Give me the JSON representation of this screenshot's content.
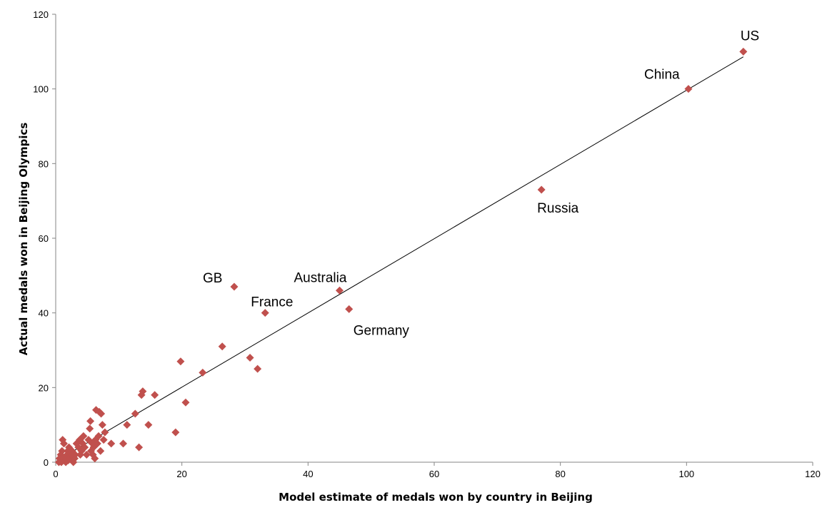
{
  "chart_data": {
    "type": "scatter",
    "title": "",
    "xlabel": "Model estimate of medals won by country in Beijing",
    "ylabel": "Actual medals won in Beijing Olympics",
    "xlim": [
      0,
      120
    ],
    "ylim": [
      0,
      120
    ],
    "xticks": [
      "0",
      "20",
      "40",
      "60",
      "80",
      "100",
      "120"
    ],
    "yticks": [
      "0",
      "20",
      "40",
      "60",
      "80",
      "100",
      "120"
    ],
    "grid": false,
    "legend": "none",
    "marker_color": "#c0504d",
    "line_color": "#000000",
    "trendline": {
      "x": [
        1,
        109
      ],
      "y": [
        1.2,
        108.6
      ]
    },
    "points": [
      {
        "x": 109,
        "y": 110,
        "label": "US"
      },
      {
        "x": 100.3,
        "y": 100,
        "label": "China"
      },
      {
        "x": 77,
        "y": 73,
        "label": "Russia"
      },
      {
        "x": 45,
        "y": 46,
        "label": "Australia"
      },
      {
        "x": 46.5,
        "y": 41,
        "label": "Germany"
      },
      {
        "x": 28.3,
        "y": 47,
        "label": "GB"
      },
      {
        "x": 33.2,
        "y": 40,
        "label": "France"
      },
      {
        "x": 26.4,
        "y": 31
      },
      {
        "x": 30.8,
        "y": 28
      },
      {
        "x": 32,
        "y": 25
      },
      {
        "x": 19.8,
        "y": 27
      },
      {
        "x": 23.3,
        "y": 24
      },
      {
        "x": 20.6,
        "y": 16
      },
      {
        "x": 15.7,
        "y": 18
      },
      {
        "x": 13.8,
        "y": 19
      },
      {
        "x": 13.6,
        "y": 18
      },
      {
        "x": 12.6,
        "y": 13
      },
      {
        "x": 11.3,
        "y": 10
      },
      {
        "x": 14.7,
        "y": 10
      },
      {
        "x": 19,
        "y": 8
      },
      {
        "x": 10.7,
        "y": 5
      },
      {
        "x": 13.2,
        "y": 4
      },
      {
        "x": 8.8,
        "y": 5
      },
      {
        "x": 6.4,
        "y": 14
      },
      {
        "x": 6.9,
        "y": 13.5
      },
      {
        "x": 7.2,
        "y": 13
      },
      {
        "x": 5.5,
        "y": 11
      },
      {
        "x": 5.4,
        "y": 9
      },
      {
        "x": 7.4,
        "y": 10
      },
      {
        "x": 7.8,
        "y": 8
      },
      {
        "x": 7.6,
        "y": 6
      },
      {
        "x": 7.1,
        "y": 3
      },
      {
        "x": 6.2,
        "y": 1
      },
      {
        "x": 5.9,
        "y": 2
      },
      {
        "x": 6.6,
        "y": 5
      },
      {
        "x": 5.2,
        "y": 6
      },
      {
        "x": 4.4,
        "y": 7
      },
      {
        "x": 4.1,
        "y": 3
      },
      {
        "x": 3.6,
        "y": 4
      },
      {
        "x": 3.3,
        "y": 5
      },
      {
        "x": 3.1,
        "y": 2
      },
      {
        "x": 2.6,
        "y": 3
      },
      {
        "x": 2.3,
        "y": 1
      },
      {
        "x": 2.1,
        "y": 4
      },
      {
        "x": 1.8,
        "y": 2
      },
      {
        "x": 1.6,
        "y": 0
      },
      {
        "x": 1.3,
        "y": 5
      },
      {
        "x": 1.1,
        "y": 6
      },
      {
        "x": 1.0,
        "y": 3
      },
      {
        "x": 0.8,
        "y": 2
      },
      {
        "x": 0.6,
        "y": 1
      },
      {
        "x": 0.5,
        "y": 0
      },
      {
        "x": 1.5,
        "y": 1
      },
      {
        "x": 2.0,
        "y": 0.5
      },
      {
        "x": 2.8,
        "y": 0
      },
      {
        "x": 3.0,
        "y": 1
      },
      {
        "x": 3.9,
        "y": 2
      },
      {
        "x": 4.6,
        "y": 4
      },
      {
        "x": 4.9,
        "y": 2
      },
      {
        "x": 5.6,
        "y": 3
      },
      {
        "x": 6.0,
        "y": 4
      },
      {
        "x": 6.8,
        "y": 7
      },
      {
        "x": 6.3,
        "y": 6
      },
      {
        "x": 5.8,
        "y": 5
      },
      {
        "x": 4.3,
        "y": 5
      },
      {
        "x": 3.8,
        "y": 6
      },
      {
        "x": 2.5,
        "y": 2
      },
      {
        "x": 1.9,
        "y": 3
      },
      {
        "x": 1.2,
        "y": 1
      },
      {
        "x": 0.9,
        "y": 0
      }
    ]
  }
}
